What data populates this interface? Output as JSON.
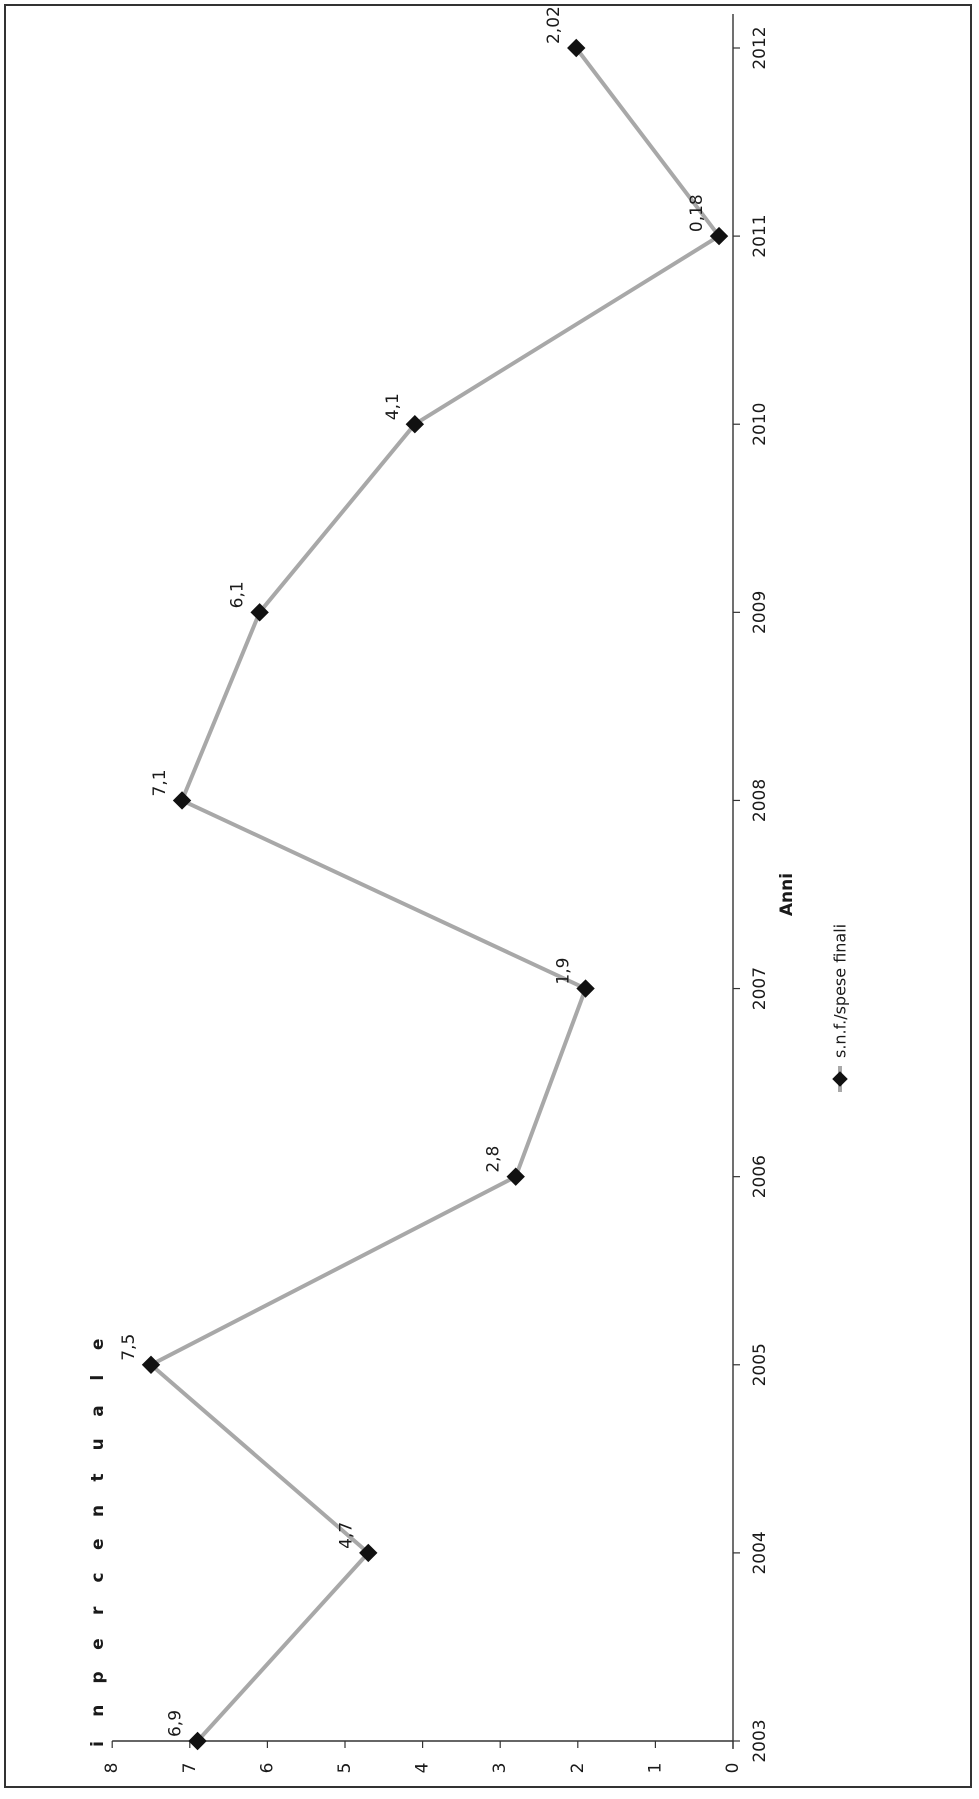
{
  "chart_data": {
    "type": "line",
    "orientation": "rotated-90-clockwise",
    "xlabel": "Anni",
    "ylabel": "in percentuale",
    "categories": [
      "2003",
      "2004",
      "2005",
      "2006",
      "2007",
      "2008",
      "2009",
      "2010",
      "2011",
      "2012"
    ],
    "y_ticks": [
      "0",
      "1",
      "2",
      "3",
      "4",
      "5",
      "6",
      "7",
      "8"
    ],
    "ylim": [
      0,
      8
    ],
    "grid": false,
    "legend_position": "bottom",
    "series": [
      {
        "name": "s.n.f./spese finali",
        "values": [
          6.9,
          4.7,
          7.5,
          2.8,
          1.9,
          7.1,
          6.1,
          4.1,
          0.18,
          2.02
        ],
        "labels": [
          "6,9",
          "4,7",
          "7,5",
          "2,8",
          "1,9",
          "7,1",
          "6,1",
          "4,1",
          "0,18",
          "2,02"
        ],
        "color": "#a8a8a8",
        "marker": "diamond",
        "marker_color": "#111111"
      }
    ]
  }
}
